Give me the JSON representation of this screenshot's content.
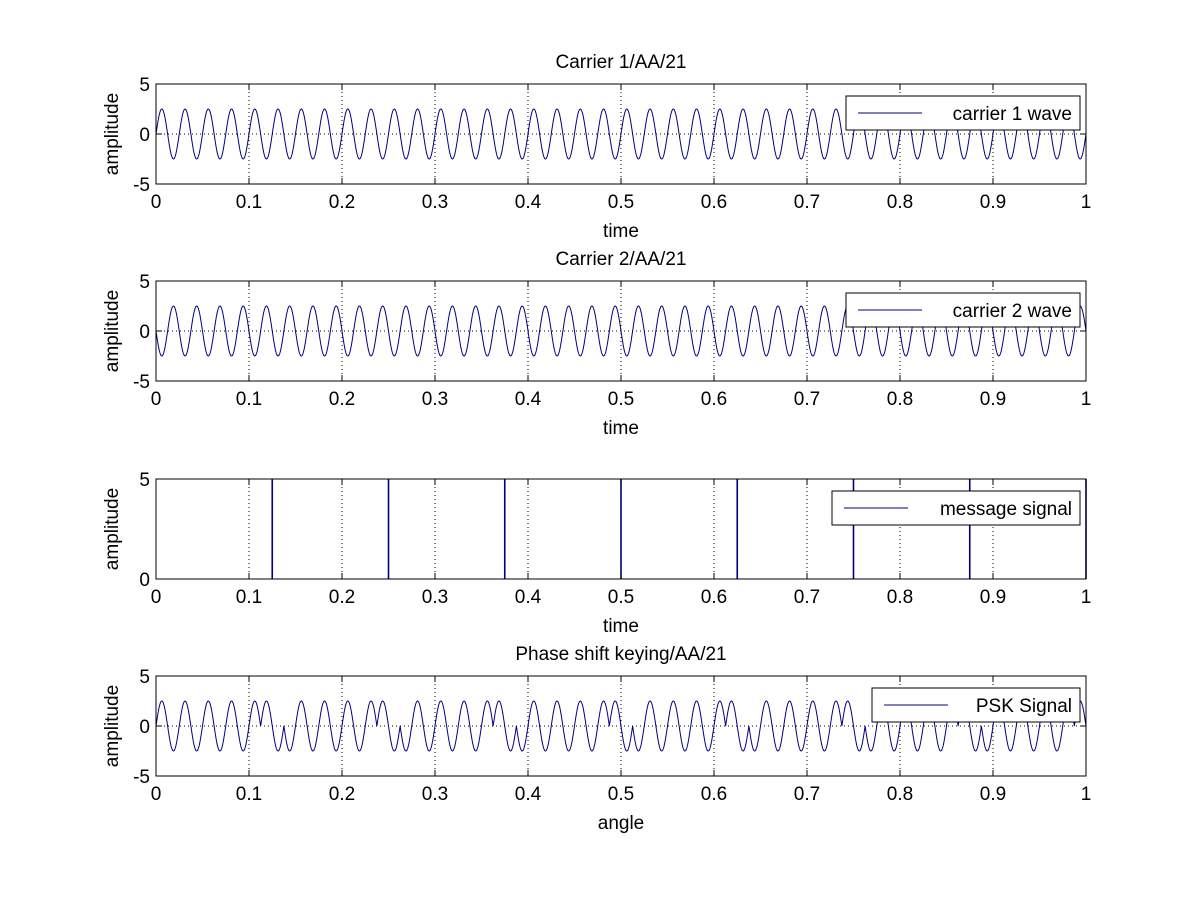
{
  "figure": {
    "background": "#ffffff",
    "line_color": "#00007f"
  },
  "chart_data": [
    {
      "type": "line",
      "title": "Carrier 1/AA/21",
      "xlabel": "time",
      "ylabel": "amplitude",
      "xlim": [
        0,
        1
      ],
      "ylim": [
        -5,
        5
      ],
      "xticks": [
        "0",
        "0.1",
        "0.2",
        "0.3",
        "0.4",
        "0.5",
        "0.6",
        "0.7",
        "0.8",
        "0.9",
        "1"
      ],
      "yticks": [
        "-5",
        "0",
        "5"
      ],
      "grid": true,
      "legend": {
        "position": "top-right",
        "entries": [
          "carrier 1 wave"
        ]
      },
      "series": [
        {
          "name": "carrier 1 wave",
          "kind": "sine",
          "amplitude": 2.5,
          "frequency_hz": 40,
          "phase_deg": 0,
          "color": "#00007f"
        }
      ]
    },
    {
      "type": "line",
      "title": "Carrier 2/AA/21",
      "xlabel": "time",
      "ylabel": "amplitude",
      "xlim": [
        0,
        1
      ],
      "ylim": [
        -5,
        5
      ],
      "xticks": [
        "0",
        "0.1",
        "0.2",
        "0.3",
        "0.4",
        "0.5",
        "0.6",
        "0.7",
        "0.8",
        "0.9",
        "1"
      ],
      "yticks": [
        "-5",
        "0",
        "5"
      ],
      "grid": true,
      "legend": {
        "position": "top-right",
        "entries": [
          "carrier 2 wave"
        ]
      },
      "series": [
        {
          "name": "carrier 2 wave",
          "kind": "sine",
          "amplitude": 2.5,
          "frequency_hz": 40,
          "phase_deg": 180,
          "color": "#00007f"
        }
      ]
    },
    {
      "type": "line",
      "title": "",
      "xlabel": "time",
      "ylabel": "amplitude",
      "xlim": [
        0,
        1
      ],
      "ylim": [
        0,
        5
      ],
      "xticks": [
        "0",
        "0.1",
        "0.2",
        "0.3",
        "0.4",
        "0.5",
        "0.6",
        "0.7",
        "0.8",
        "0.9",
        "1"
      ],
      "yticks": [
        "0",
        "5"
      ],
      "grid": true,
      "legend": {
        "position": "top-right",
        "entries": [
          "message signal"
        ]
      },
      "series": [
        {
          "name": "message signal",
          "kind": "impulses",
          "x": [
            0.125,
            0.25,
            0.375,
            0.5,
            0.625,
            0.75,
            0.875,
            1.0
          ],
          "value": 5,
          "color": "#00007f"
        }
      ]
    },
    {
      "type": "line",
      "title": "Phase shift keying/AA/21",
      "xlabel": "angle",
      "ylabel": "amplitude",
      "xlim": [
        0,
        1
      ],
      "ylim": [
        -5,
        5
      ],
      "xticks": [
        "0",
        "0.1",
        "0.2",
        "0.3",
        "0.4",
        "0.5",
        "0.6",
        "0.7",
        "0.8",
        "0.9",
        "1"
      ],
      "yticks": [
        "-5",
        "0",
        "5"
      ],
      "grid": true,
      "legend": {
        "position": "top-right",
        "entries": [
          "PSK Signal"
        ]
      },
      "series": [
        {
          "name": "PSK Signal",
          "kind": "psk",
          "amplitude": 2.5,
          "frequency_hz": 40,
          "switch_x": [
            0.125,
            0.25,
            0.375,
            0.5,
            0.625,
            0.75,
            0.875,
            1.0
          ],
          "color": "#00007f"
        }
      ]
    }
  ]
}
